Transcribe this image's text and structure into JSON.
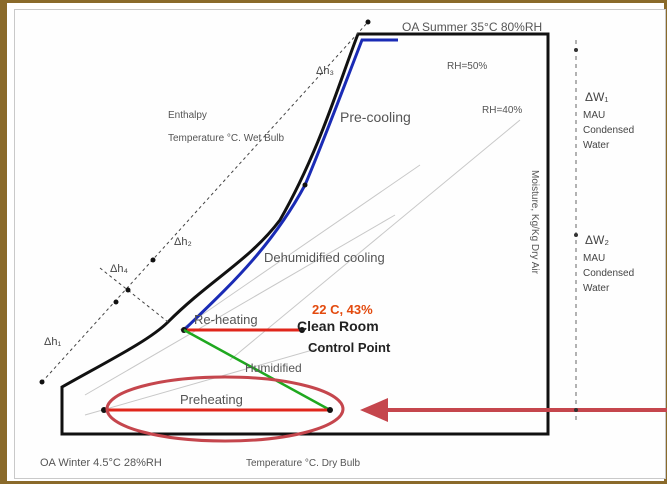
{
  "labels": {
    "oa_summer": "OA Summer 35°C 80%RH",
    "oa_winter": "OA Winter 4.5°C 28%RH",
    "temp_dry_bulb": "Temperature °C. Dry Bulb",
    "moisture": "Moisture, Kg/Kg Dry Air",
    "rh50": "RH=50%",
    "rh40": "RH=40%",
    "enthalpy": "Enthalpy",
    "temp_wet_bulb": "Temperature °C. Wet Bulb",
    "pre_cooling": "Pre-cooling",
    "dehumidified_cooling": "Dehumidified cooling",
    "reheating": "Re-heating",
    "control_point_value": "22 C, 43%",
    "clean_room_line1": "Clean Room",
    "clean_room_line2": "Control Point",
    "humidified": "Humidified",
    "preheating": "Preheating",
    "dh1": "h₁",
    "dh2": "h₂",
    "dh3": "h₃",
    "dh4": "h₄",
    "dh_symbol": "Δ",
    "w1": "ΔW₁",
    "w2": "ΔW₂",
    "mau_condensed_water_1": [
      "MAU",
      "Condensed",
      "Water"
    ],
    "mau_condensed_water_2": [
      "MAU",
      "Condensed",
      "Water"
    ]
  },
  "colors": {
    "process_blue": "#1a2bb5",
    "process_red": "#e0261b",
    "process_green": "#1fa81f",
    "ellipse": "#c5464d",
    "arrow": "#c5464d",
    "control_value": "#e34a0e",
    "outline": "#111111"
  }
}
